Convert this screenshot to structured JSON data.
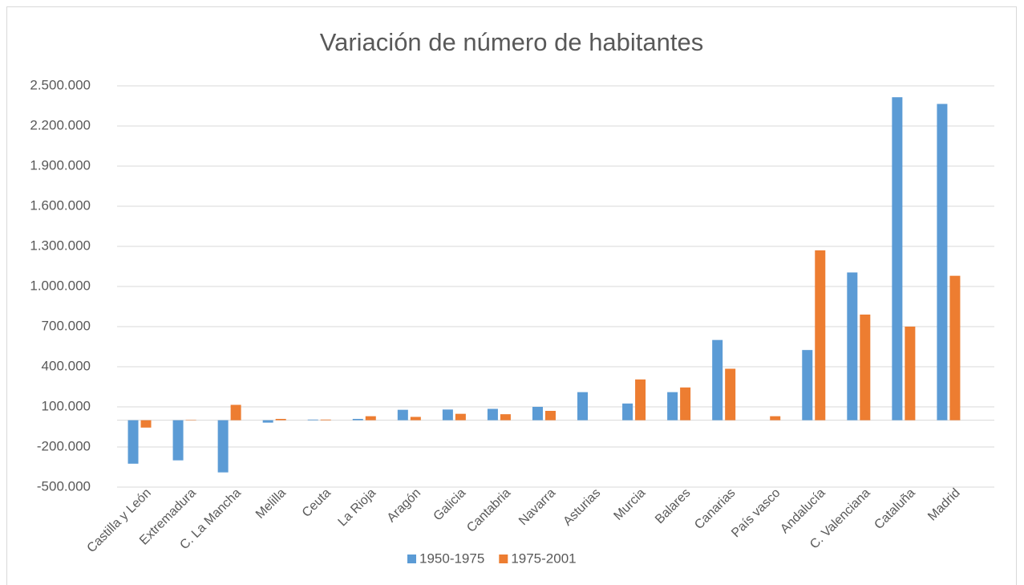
{
  "chart_data": {
    "type": "bar",
    "title": "Variación de número de habitantes",
    "categories": [
      "Castilla y León",
      "Extremadura",
      "C. La Mancha",
      "Melilla",
      "Ceuta",
      "La Rioja",
      "Aragón",
      "Galicia",
      "Cantabria",
      "Navarra",
      "Asturias",
      "Murcia",
      "Balares",
      "Canarias",
      "País vasco",
      "Andalucía",
      "C. Valenciana",
      "Cataluña",
      "Madrid"
    ],
    "series": [
      {
        "name": "1950-1975",
        "color": "#5b9bd5",
        "values": [
          -325000,
          -300000,
          -390000,
          -18000,
          5000,
          10000,
          78000,
          80000,
          85000,
          100000,
          210000,
          125000,
          210000,
          600000,
          0,
          525000,
          1105000,
          2415000,
          2365000
        ]
      },
      {
        "name": "1975-2001",
        "color": "#ed7d31",
        "values": [
          -55000,
          3000,
          115000,
          10000,
          5000,
          30000,
          25000,
          48000,
          45000,
          70000,
          0,
          305000,
          245000,
          385000,
          30000,
          1270000,
          790000,
          700000,
          1080000
        ]
      }
    ],
    "ylim": [
      -500000,
      2500000
    ],
    "yticks": [
      {
        "value": -500000,
        "label": "-500.000"
      },
      {
        "value": -200000,
        "label": "-200.000"
      },
      {
        "value": 100000,
        "label": "100.000"
      },
      {
        "value": 400000,
        "label": "400.000"
      },
      {
        "value": 700000,
        "label": "700.000"
      },
      {
        "value": 1000000,
        "label": "1.000.000"
      },
      {
        "value": 1300000,
        "label": "1.300.000"
      },
      {
        "value": 1600000,
        "label": "1.600.000"
      },
      {
        "value": 1900000,
        "label": "1.900.000"
      },
      {
        "value": 2200000,
        "label": "2.200.000"
      },
      {
        "value": 2500000,
        "label": "2.500.000"
      }
    ],
    "grid": true,
    "legend": "bottom"
  }
}
